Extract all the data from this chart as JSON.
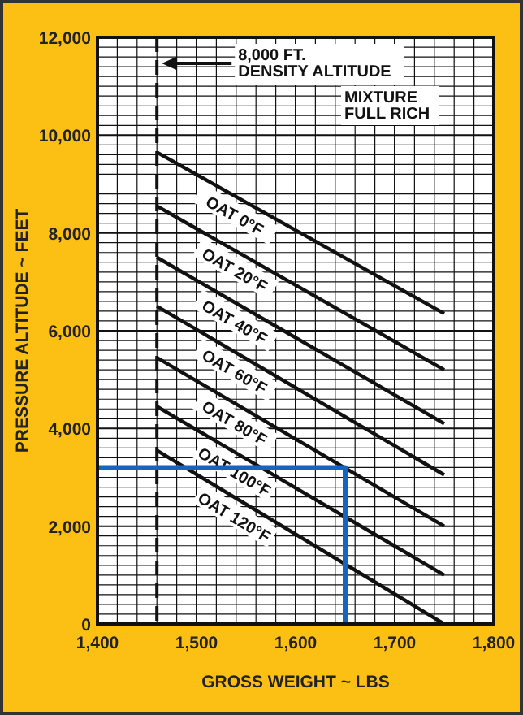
{
  "chart_data": {
    "type": "line",
    "xlabel": "GROSS WEIGHT ~ LBS",
    "ylabel": "PRESSURE ALTITUDE ~ FEET",
    "xlim": [
      1400,
      1800
    ],
    "ylim": [
      0,
      12000
    ],
    "xticks": [
      {
        "value": 1400,
        "label": "1,400"
      },
      {
        "value": 1420,
        "label": null
      },
      {
        "value": 1440,
        "label": null
      },
      {
        "value": 1460,
        "label": null
      },
      {
        "value": 1480,
        "label": null
      },
      {
        "value": 1500,
        "label": "1,500"
      },
      {
        "value": 1520,
        "label": null
      },
      {
        "value": 1540,
        "label": null
      },
      {
        "value": 1560,
        "label": null
      },
      {
        "value": 1580,
        "label": null
      },
      {
        "value": 1600,
        "label": "1,600"
      },
      {
        "value": 1620,
        "label": null
      },
      {
        "value": 1640,
        "label": null
      },
      {
        "value": 1660,
        "label": null
      },
      {
        "value": 1680,
        "label": null
      },
      {
        "value": 1700,
        "label": "1,700"
      },
      {
        "value": 1720,
        "label": null
      },
      {
        "value": 1740,
        "label": null
      },
      {
        "value": 1760,
        "label": null
      },
      {
        "value": 1780,
        "label": null
      },
      {
        "value": 1800,
        "label": "1,800"
      }
    ],
    "yticks": [
      0,
      {
        "value": 200,
        "label": null
      },
      {
        "value": 400,
        "label": null
      },
      {
        "value": 600,
        "label": null
      },
      {
        "value": 800,
        "label": null
      },
      {
        "value": 1000,
        "label": null
      },
      {
        "value": 1200,
        "label": null
      },
      {
        "value": 1400,
        "label": null
      },
      {
        "value": 1600,
        "label": null
      },
      {
        "value": 1800,
        "label": null
      },
      {
        "value": 2000,
        "label": "2,000"
      },
      {
        "value": 2200,
        "label": null
      },
      {
        "value": 2400,
        "label": null
      },
      {
        "value": 2600,
        "label": null
      },
      {
        "value": 2800,
        "label": null
      },
      {
        "value": 3000,
        "label": null
      },
      {
        "value": 3200,
        "label": null
      },
      {
        "value": 3400,
        "label": null
      },
      {
        "value": 3600,
        "label": null
      },
      {
        "value": 3800,
        "label": null
      },
      {
        "value": 4000,
        "label": "4,000"
      },
      {
        "value": 4200,
        "label": null
      },
      {
        "value": 4400,
        "label": null
      },
      {
        "value": 4600,
        "label": null
      },
      {
        "value": 4800,
        "label": null
      },
      {
        "value": 5000,
        "label": null
      },
      {
        "value": 5200,
        "label": null
      },
      {
        "value": 5400,
        "label": null
      },
      {
        "value": 5600,
        "label": null
      },
      {
        "value": 5800,
        "label": null
      },
      {
        "value": 6000,
        "label": "6,000"
      },
      {
        "value": 6200,
        "label": null
      },
      {
        "value": 6400,
        "label": null
      },
      {
        "value": 6600,
        "label": null
      },
      {
        "value": 6800,
        "label": null
      },
      {
        "value": 7000,
        "label": null
      },
      {
        "value": 7200,
        "label": null
      },
      {
        "value": 7400,
        "label": null
      },
      {
        "value": 7600,
        "label": null
      },
      {
        "value": 7800,
        "label": null
      },
      {
        "value": 8000,
        "label": "8,000"
      },
      {
        "value": 8200,
        "label": null
      },
      {
        "value": 8400,
        "label": null
      },
      {
        "value": 8600,
        "label": null
      },
      {
        "value": 8800,
        "label": null
      },
      {
        "value": 9000,
        "label": null
      },
      {
        "value": 9200,
        "label": null
      },
      {
        "value": 9400,
        "label": null
      },
      {
        "value": 9600,
        "label": null
      },
      {
        "value": 9800,
        "label": null
      },
      {
        "value": 10000,
        "label": "10,000"
      },
      {
        "value": 10200,
        "label": null
      },
      {
        "value": 10400,
        "label": null
      },
      {
        "value": 10600,
        "label": null
      },
      {
        "value": 10800,
        "label": null
      },
      {
        "value": 11000,
        "label": null
      },
      {
        "value": 11200,
        "label": null
      },
      {
        "value": 11400,
        "label": null
      },
      {
        "value": 11600,
        "label": null
      },
      {
        "value": 11800,
        "label": null
      },
      {
        "value": 12000,
        "label": "12,000"
      }
    ],
    "grid": true,
    "line_style": "solid",
    "marker": "none",
    "series": [
      {
        "name": "OAT 0°F",
        "color": "#111111",
        "x": [
          1460,
          1750
        ],
        "values": [
          9650,
          6350
        ]
      },
      {
        "name": "OAT 20°F",
        "color": "#111111",
        "x": [
          1460,
          1750
        ],
        "values": [
          8550,
          5200
        ]
      },
      {
        "name": "OAT 40°F",
        "color": "#111111",
        "x": [
          1460,
          1750
        ],
        "values": [
          7500,
          4100
        ]
      },
      {
        "name": "OAT 60°F",
        "color": "#111111",
        "x": [
          1460,
          1750
        ],
        "values": [
          6500,
          3050
        ]
      },
      {
        "name": "OAT 80°F",
        "color": "#111111",
        "x": [
          1460,
          1750
        ],
        "values": [
          5450,
          2000
        ]
      },
      {
        "name": "OAT 100°F",
        "color": "#111111",
        "x": [
          1460,
          1750
        ],
        "values": [
          4450,
          1000
        ]
      },
      {
        "name": "OAT 120°F",
        "color": "#111111",
        "x": [
          1460,
          1750
        ],
        "values": [
          3550,
          0
        ]
      },
      {
        "color": "#1565c0",
        "x": [
          1400,
          1650,
          1650
        ],
        "values": [
          3200,
          3200,
          0
        ]
      }
    ],
    "ref_lines": [
      {
        "axis": "x",
        "value": 1460,
        "label": "8,000 FT.\nDENSITY ALTITUDE",
        "color": "#111111",
        "line_style": "dashed"
      }
    ],
    "annotations": [
      "MIXTURE\nFULL RICH"
    ]
  }
}
